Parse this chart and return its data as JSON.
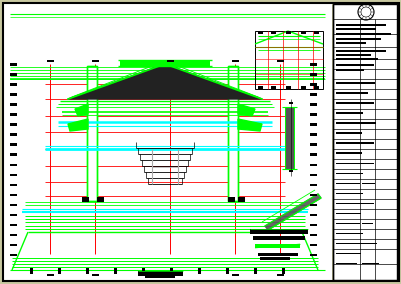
{
  "paper_bg": "#c8c8a0",
  "green": "#00ff00",
  "red": "#ff0000",
  "cyan": "#00ffff",
  "black": "#000000",
  "white": "#ffffff",
  "gray": "#aaaaaa",
  "dark": "#222222",
  "figsize": [
    4.02,
    2.84
  ],
  "dpi": 100
}
